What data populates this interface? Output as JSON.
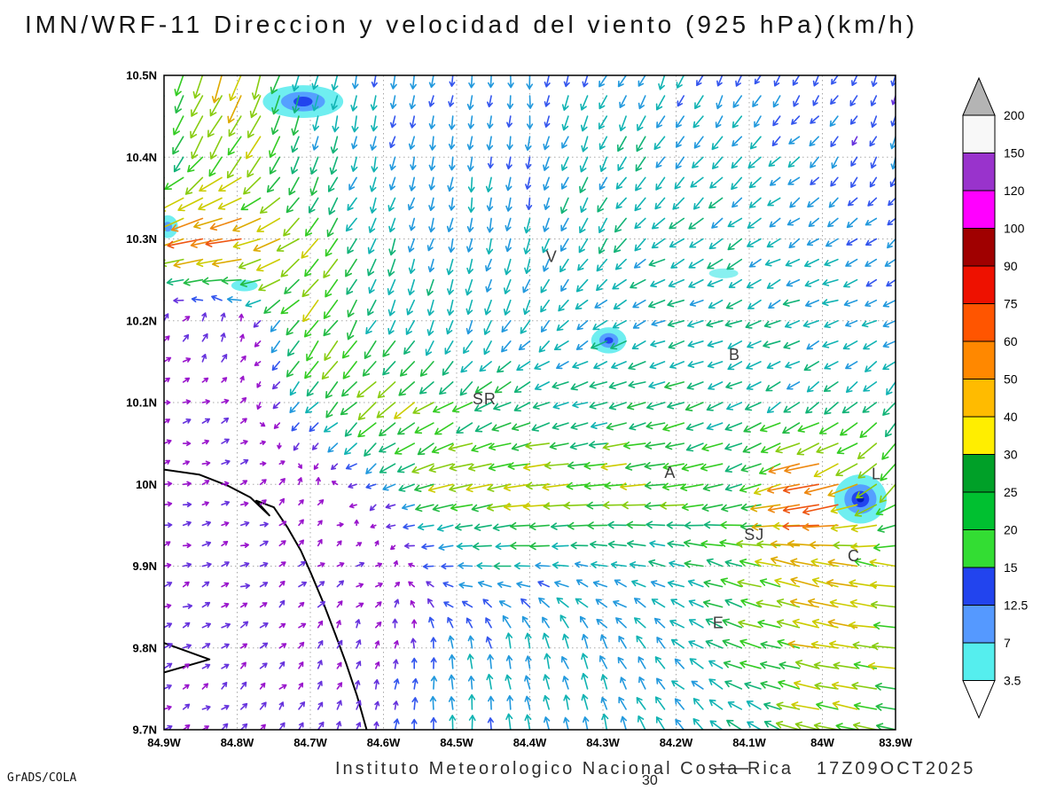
{
  "header": {
    "title": "IMN/WRF-11 Direccion y velocidad del viento (925 hPa)(km/h)"
  },
  "footer": {
    "credit": "GrADS/COLA",
    "institute": "Instituto Meteorologico Nacional Costa Rica",
    "timestamp": "17Z09OCT2025",
    "station_label": "30"
  },
  "chart_data": {
    "type": "quiver",
    "title": "IMN/WRF-11 Direccion y velocidad del viento (925 hPa)(km/h)",
    "units": "km/h",
    "level": "925 hPa",
    "grid": true,
    "x_axis": {
      "ticks": [
        "84.9W",
        "84.8W",
        "84.7W",
        "84.6W",
        "84.5W",
        "84.4W",
        "84.3W",
        "84.2W",
        "84.1W",
        "84W",
        "83.9W"
      ],
      "max_w": 84.9,
      "min_w": 83.9
    },
    "y_axis": {
      "ticks": [
        "10.5N",
        "10.4N",
        "10.3N",
        "10.2N",
        "10.1N",
        "10N",
        "9.9N",
        "9.8N",
        "9.7N"
      ],
      "max": 10.5,
      "min": 9.7
    },
    "colorbar": {
      "labels": [
        "200",
        "150",
        "120",
        "100",
        "90",
        "75",
        "60",
        "50",
        "40",
        "30",
        "25",
        "20",
        "15",
        "12.5",
        "7",
        "3.5"
      ],
      "segment_colors": [
        "#f8f8f8",
        "#9933cc",
        "#ff00ff",
        "#a00000",
        "#ee1100",
        "#ff5500",
        "#ff8800",
        "#ffbb00",
        "#ffee00",
        "#00a028",
        "#00c030",
        "#33dd33",
        "#2244ee",
        "#5599ff",
        "#55eeee"
      ],
      "over_color": "#b4b4b4",
      "under_color": "#ffffff"
    },
    "speed_color_scale": {
      "thresholds": [
        6,
        10,
        14,
        18,
        22,
        26,
        30,
        34,
        38,
        44,
        50,
        58,
        70,
        85
      ],
      "colors": [
        "#9914cc",
        "#6632dd",
        "#3355ee",
        "#2299dd",
        "#11b3b3",
        "#11b377",
        "#22bb44",
        "#33cc22",
        "#88cc11",
        "#cccc00",
        "#ddaa00",
        "#ee8811",
        "#ee5511",
        "#ee2222",
        "#dd1144"
      ]
    },
    "wind_grid": {
      "lon_start_w": 84.9,
      "lon_step_w": 0.1,
      "lat_start": 10.5,
      "lat_step": 0.1,
      "order": "north_to_south_rows_west_to_east_cols",
      "u_kmh": [
        [
          -10,
          -15,
          -5,
          -3,
          -2,
          0,
          -8,
          -8,
          -6,
          -6,
          -4
        ],
        [
          -12,
          -25,
          -8,
          -4,
          -2,
          -2,
          -10,
          -12,
          -14,
          -10,
          -4
        ],
        [
          -45,
          -60,
          -25,
          -8,
          -4,
          -4,
          -12,
          -18,
          -15,
          -16,
          -10
        ],
        [
          4,
          2,
          -24,
          -10,
          -5,
          -10,
          -16,
          -20,
          -20,
          -18,
          -15
        ],
        [
          4,
          4,
          -12,
          -30,
          -25,
          -20,
          -22,
          -25,
          -20,
          -18,
          -15
        ],
        [
          5,
          5,
          3,
          -10,
          -35,
          -40,
          -36,
          -34,
          -25,
          -62,
          -20
        ],
        [
          6,
          6,
          5,
          5,
          -15,
          -20,
          -18,
          -20,
          -28,
          -48,
          -35
        ],
        [
          6,
          5,
          4,
          2,
          -3,
          -5,
          -8,
          -12,
          -25,
          -42,
          -38
        ],
        [
          5,
          5,
          4,
          2,
          0,
          -2,
          -5,
          -10,
          -18,
          -35,
          -30
        ]
      ],
      "v_kmh": [
        [
          -25,
          -40,
          -20,
          -15,
          -15,
          -14,
          -16,
          -15,
          -12,
          -10,
          -10
        ],
        [
          -22,
          -30,
          -22,
          -16,
          -15,
          -14,
          -18,
          -16,
          -14,
          -10,
          -12
        ],
        [
          -15,
          -10,
          -25,
          -20,
          -16,
          -18,
          -18,
          -10,
          -12,
          -8,
          -8
        ],
        [
          4,
          8,
          -30,
          -20,
          -18,
          -15,
          -10,
          -6,
          -8,
          -6,
          -5
        ],
        [
          1,
          3,
          -15,
          -25,
          -15,
          -10,
          -5,
          -8,
          -10,
          -12,
          -18
        ],
        [
          1,
          2,
          4,
          -6,
          -8,
          -5,
          -3,
          -4,
          -10,
          -15,
          -25
        ],
        [
          2,
          2,
          3,
          2,
          0,
          0,
          3,
          5,
          8,
          10,
          5
        ],
        [
          3,
          4,
          5,
          6,
          14,
          18,
          16,
          12,
          8,
          8,
          5
        ],
        [
          3,
          4,
          6,
          8,
          16,
          18,
          18,
          14,
          10,
          8,
          6
        ]
      ]
    },
    "arrow_density": {
      "cols": 39,
      "rows": 33
    },
    "cities": [
      {
        "label": "V",
        "lon_w": 84.37,
        "lat": 10.272
      },
      {
        "label": "B",
        "lon_w": 84.12,
        "lat": 10.152
      },
      {
        "label": "SR",
        "lon_w": 84.462,
        "lat": 10.098
      },
      {
        "label": "A",
        "lon_w": 84.208,
        "lat": 10.008
      },
      {
        "label": "SJ",
        "lon_w": 84.093,
        "lat": 9.932
      },
      {
        "label": "C",
        "lon_w": 83.957,
        "lat": 9.906
      },
      {
        "label": "E",
        "lon_w": 84.142,
        "lat": 9.824
      },
      {
        "label": "L",
        "lon_w": 83.926,
        "lat": 10.006
      }
    ],
    "coastlines": [
      [
        [
          84.9,
          10.018
        ],
        [
          84.852,
          10.012
        ],
        [
          84.812,
          9.998
        ],
        [
          84.782,
          9.984
        ],
        [
          84.756,
          9.962
        ],
        [
          84.774,
          9.98
        ],
        [
          84.75,
          9.972
        ],
        [
          84.731,
          9.947
        ],
        [
          84.713,
          9.919
        ],
        [
          84.699,
          9.891
        ],
        [
          84.683,
          9.857
        ],
        [
          84.666,
          9.817
        ],
        [
          84.651,
          9.781
        ],
        [
          84.636,
          9.741
        ],
        [
          84.623,
          9.7
        ]
      ],
      [
        [
          84.9,
          9.806
        ],
        [
          84.838,
          9.786
        ],
        [
          84.9,
          9.77
        ]
      ]
    ],
    "shaded_areas": [
      {
        "lon_w": 84.71,
        "lat": 10.468,
        "layers": [
          {
            "rx": 0.055,
            "ry": 0.02,
            "color": "#6feef0"
          },
          {
            "rx": 0.03,
            "ry": 0.012,
            "color": "#55a0ff"
          },
          {
            "rx": 0.013,
            "ry": 0.006,
            "color": "#2244ee"
          }
        ]
      },
      {
        "lon_w": 84.895,
        "lat": 10.315,
        "layers": [
          {
            "rx": 0.014,
            "ry": 0.014,
            "color": "#6feef0"
          },
          {
            "rx": 0.006,
            "ry": 0.006,
            "color": "#55a0ff"
          }
        ]
      },
      {
        "lon_w": 84.79,
        "lat": 10.243,
        "layers": [
          {
            "rx": 0.018,
            "ry": 0.007,
            "color": "#6feef0"
          }
        ]
      },
      {
        "lon_w": 84.292,
        "lat": 10.176,
        "layers": [
          {
            "rx": 0.024,
            "ry": 0.016,
            "color": "#6feef0"
          },
          {
            "rx": 0.013,
            "ry": 0.009,
            "color": "#55a0ff"
          },
          {
            "rx": 0.006,
            "ry": 0.004,
            "color": "#2244ee"
          }
        ]
      },
      {
        "lon_w": 83.948,
        "lat": 9.982,
        "layers": [
          {
            "rx": 0.036,
            "ry": 0.03,
            "color": "#6feef0"
          },
          {
            "rx": 0.022,
            "ry": 0.018,
            "color": "#55a0ff"
          },
          {
            "rx": 0.012,
            "ry": 0.01,
            "color": "#2244ee"
          },
          {
            "rx": 0.005,
            "ry": 0.004,
            "color": "#0018b4"
          }
        ]
      },
      {
        "lon_w": 84.135,
        "lat": 10.258,
        "layers": [
          {
            "rx": 0.02,
            "ry": 0.006,
            "color": "#88f0f0"
          }
        ]
      }
    ]
  }
}
